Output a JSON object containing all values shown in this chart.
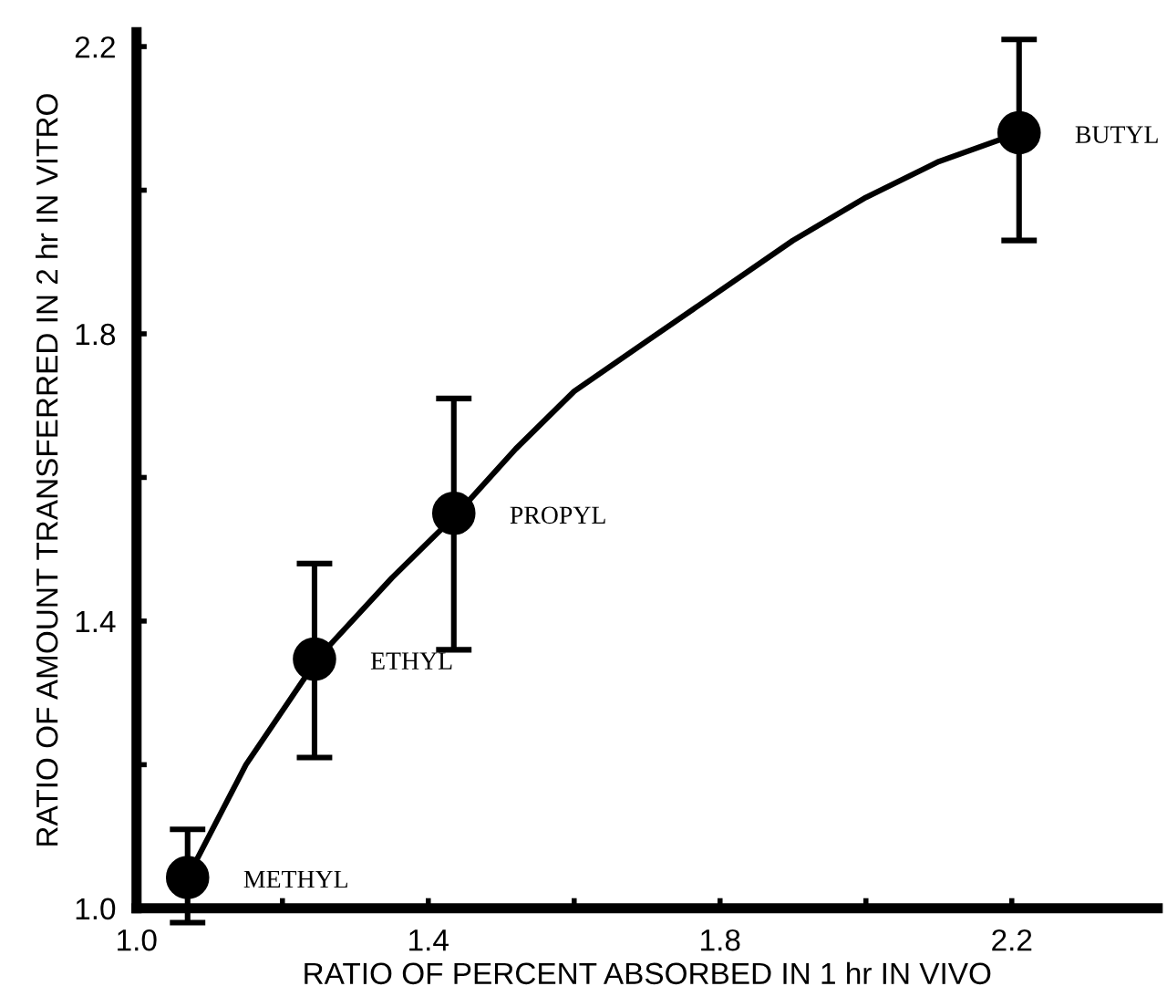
{
  "chart_data": {
    "type": "scatter",
    "xlabel": "RATIO OF PERCENT ABSORBED IN 1 hr IN VIVO",
    "ylabel": "RATIO OF AMOUNT TRANSFERRED IN 2 hr IN VITRO",
    "xlim": [
      1.0,
      2.4
    ],
    "ylim": [
      1.0,
      2.22
    ],
    "xticks": [
      {
        "value": 1.0,
        "label": "1.0"
      },
      {
        "value": 1.2,
        "label": null
      },
      1.4,
      {
        "value": 1.6,
        "label": null
      },
      1.8,
      {
        "value": 2.0,
        "label": null
      },
      2.2
    ],
    "yticks": [
      {
        "value": 1.0,
        "label": "1.0"
      },
      {
        "value": 1.2,
        "label": null
      },
      1.4,
      {
        "value": 1.6,
        "label": null
      },
      1.8,
      {
        "value": 2.0,
        "label": null
      },
      2.2
    ],
    "grid": false,
    "legend": false,
    "marker": "circle",
    "series": [
      {
        "color": "#000000",
        "x": [
          1.07,
          1.244,
          1.435,
          2.21
        ],
        "values": [
          1.043,
          1.347,
          1.55,
          2.08
        ],
        "errors": [
          [
            0.98,
            1.11
          ],
          [
            1.21,
            1.48
          ],
          [
            1.36,
            1.71
          ],
          [
            1.93,
            2.21
          ]
        ]
      },
      {
        "type": "line",
        "color": "#000000",
        "marker": "none",
        "line_style": "solid",
        "x": [
          1.07,
          1.15,
          1.25,
          1.35,
          1.44,
          1.52,
          1.6,
          1.7,
          1.8,
          1.9,
          2.0,
          2.1,
          2.21
        ],
        "values": [
          1.043,
          1.2,
          1.35,
          1.46,
          1.55,
          1.64,
          1.72,
          1.79,
          1.86,
          1.93,
          1.99,
          2.04,
          2.08
        ]
      }
    ],
    "annotations": [
      {
        "text": "METHYL",
        "x": 1.07,
        "y": 1.043
      },
      {
        "text": "ETHYL",
        "x": 1.244,
        "y": 1.347
      },
      {
        "text": "PROPYL",
        "x": 1.435,
        "y": 1.55
      },
      {
        "text": "BUTYL",
        "x": 2.21,
        "y": 2.08
      }
    ]
  }
}
